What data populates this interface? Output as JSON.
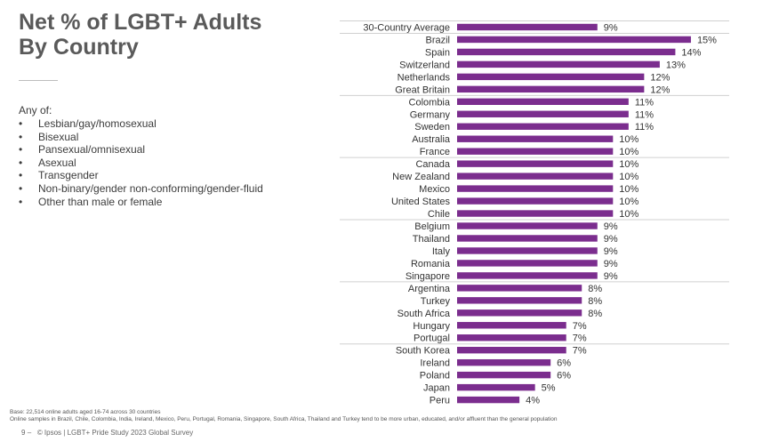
{
  "header": {
    "title_line1": "Net % of LGBT+ Adults",
    "title_line2": "By Country"
  },
  "description": {
    "heading": "Any of:",
    "items": [
      "Lesbian/gay/homosexual",
      "Bisexual",
      "Pansexual/omnisexual",
      "Asexual",
      "Transgender",
      "Non-binary/gender non-conforming/gender-fluid",
      "Other than male or female"
    ]
  },
  "chart_data": {
    "type": "bar",
    "orientation": "horizontal",
    "title": "Net % of LGBT+ Adults By Country",
    "categories": [
      "30-Country Average",
      "Brazil",
      "Spain",
      "Switzerland",
      "Netherlands",
      "Great Britain",
      "Colombia",
      "Germany",
      "Sweden",
      "Australia",
      "France",
      "Canada",
      "New Zealand",
      "Mexico",
      "United States",
      "Chile",
      "Belgium",
      "Thailand",
      "Italy",
      "Romania",
      "Singapore",
      "Argentina",
      "Turkey",
      "South Africa",
      "Hungary",
      "Portugal",
      "South Korea",
      "Ireland",
      "Poland",
      "Japan",
      "Peru"
    ],
    "values": [
      9,
      15,
      14,
      13,
      12,
      12,
      11,
      11,
      11,
      10,
      10,
      10,
      10,
      10,
      10,
      10,
      9,
      9,
      9,
      9,
      9,
      8,
      8,
      8,
      7,
      7,
      7,
      6,
      6,
      5,
      4
    ],
    "value_suffix": "%",
    "bar_color": "#7b2d8e",
    "separator_color": "#d0d0d0",
    "group_separators_after": [
      0,
      5,
      10,
      15,
      20,
      25
    ],
    "xlim": [
      0,
      15
    ]
  },
  "footnote": {
    "line1": "Base: 22,514 online adults aged 16-74 across 30 countries",
    "line2": "Online samples in Brazil, Chile, Colombia, India, Ireland, Mexico, Peru, Portugal, Romania, Singapore, South Africa, Thailand and Turkey tend to be more urban, educated, and/or affluent than the general population"
  },
  "footer": {
    "page_number": "9",
    "separator": "–",
    "credit": "© Ipsos | LGBT+ Pride Study 2023 Global Survey"
  }
}
